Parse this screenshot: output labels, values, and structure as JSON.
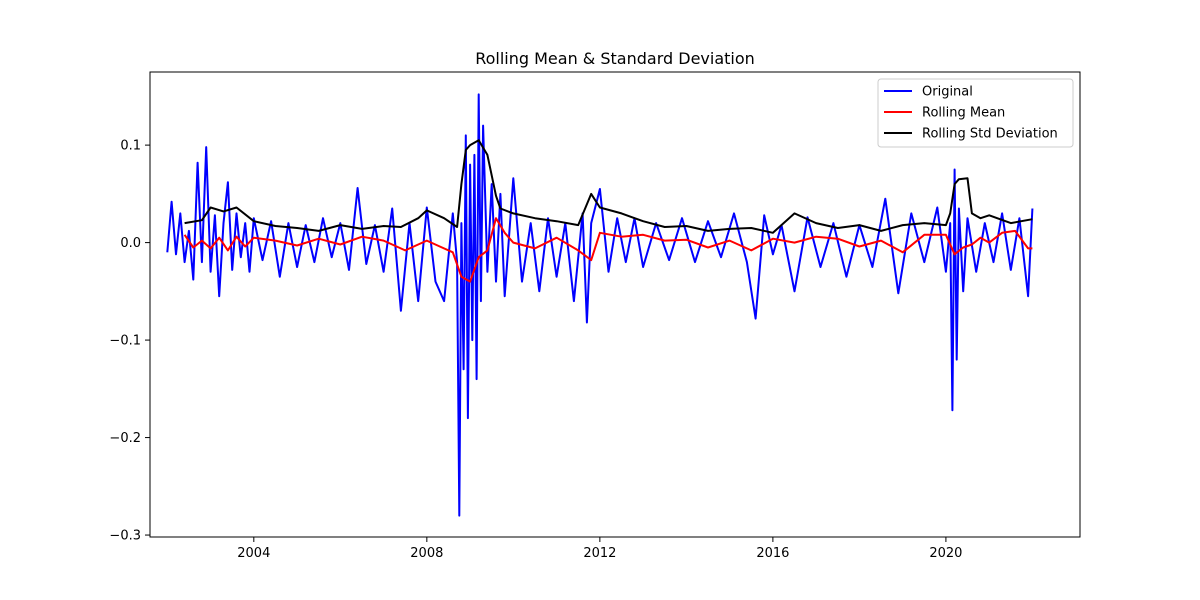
{
  "chart_data": {
    "type": "line",
    "title": "Rolling Mean & Standard Deviation",
    "xlabel": "",
    "ylabel": "",
    "x_axis": "date (year)",
    "xlim": [
      2001.6,
      2023.1
    ],
    "ylim": [
      -0.302,
      0.175
    ],
    "x_ticks": [
      2004,
      2008,
      2012,
      2016,
      2020
    ],
    "x_tick_labels": [
      "2004",
      "2008",
      "2012",
      "2016",
      "2020"
    ],
    "y_ticks": [
      -0.3,
      -0.2,
      -0.1,
      0.0,
      0.1
    ],
    "y_tick_labels": [
      "−0.3",
      "−0.2",
      "−0.1",
      "0.0",
      "0.1"
    ],
    "grid": false,
    "legend_position": "top-right",
    "series": [
      {
        "name": "Original",
        "color": "#0000ff",
        "x": [
          2002.0,
          2002.1,
          2002.2,
          2002.3,
          2002.4,
          2002.5,
          2002.6,
          2002.7,
          2002.8,
          2002.9,
          2003.0,
          2003.1,
          2003.2,
          2003.3,
          2003.4,
          2003.5,
          2003.6,
          2003.7,
          2003.8,
          2003.9,
          2004.0,
          2004.2,
          2004.4,
          2004.6,
          2004.8,
          2005.0,
          2005.2,
          2005.4,
          2005.6,
          2005.8,
          2006.0,
          2006.2,
          2006.4,
          2006.6,
          2006.8,
          2007.0,
          2007.2,
          2007.4,
          2007.6,
          2007.8,
          2008.0,
          2008.2,
          2008.4,
          2008.6,
          2008.7,
          2008.75,
          2008.8,
          2008.85,
          2008.9,
          2008.95,
          2009.0,
          2009.05,
          2009.1,
          2009.15,
          2009.2,
          2009.25,
          2009.3,
          2009.4,
          2009.5,
          2009.6,
          2009.7,
          2009.8,
          2010.0,
          2010.2,
          2010.4,
          2010.6,
          2010.8,
          2011.0,
          2011.2,
          2011.4,
          2011.6,
          2011.7,
          2011.8,
          2012.0,
          2012.2,
          2012.4,
          2012.6,
          2012.8,
          2013.0,
          2013.3,
          2013.6,
          2013.9,
          2014.2,
          2014.5,
          2014.8,
          2015.1,
          2015.4,
          2015.6,
          2015.8,
          2016.0,
          2016.2,
          2016.5,
          2016.8,
          2017.1,
          2017.4,
          2017.7,
          2018.0,
          2018.3,
          2018.6,
          2018.9,
          2019.2,
          2019.5,
          2019.8,
          2020.0,
          2020.1,
          2020.15,
          2020.2,
          2020.25,
          2020.3,
          2020.4,
          2020.5,
          2020.7,
          2020.9,
          2021.1,
          2021.3,
          2021.5,
          2021.7,
          2021.9,
          2022.0
        ],
        "values": [
          -0.01,
          0.042,
          -0.012,
          0.03,
          -0.02,
          0.012,
          -0.038,
          0.082,
          -0.02,
          0.098,
          -0.03,
          0.028,
          -0.055,
          0.02,
          0.062,
          -0.028,
          0.03,
          -0.015,
          0.02,
          -0.03,
          0.025,
          -0.018,
          0.022,
          -0.035,
          0.02,
          -0.025,
          0.018,
          -0.02,
          0.025,
          -0.015,
          0.02,
          -0.028,
          0.056,
          -0.022,
          0.018,
          -0.03,
          0.035,
          -0.07,
          0.02,
          -0.06,
          0.036,
          -0.04,
          -0.06,
          0.03,
          -0.02,
          -0.28,
          0.02,
          -0.13,
          0.11,
          -0.18,
          0.08,
          -0.1,
          0.09,
          -0.14,
          0.152,
          -0.06,
          0.12,
          -0.03,
          0.06,
          -0.04,
          0.05,
          -0.055,
          0.066,
          -0.04,
          0.02,
          -0.05,
          0.025,
          -0.035,
          0.02,
          -0.06,
          0.03,
          -0.082,
          0.02,
          0.055,
          -0.03,
          0.025,
          -0.02,
          0.025,
          -0.025,
          0.02,
          -0.018,
          0.025,
          -0.02,
          0.022,
          -0.015,
          0.03,
          -0.02,
          -0.078,
          0.028,
          -0.012,
          0.018,
          -0.05,
          0.026,
          -0.025,
          0.02,
          -0.035,
          0.018,
          -0.025,
          0.045,
          -0.052,
          0.03,
          -0.02,
          0.036,
          -0.03,
          0.02,
          -0.172,
          0.075,
          -0.12,
          0.035,
          -0.05,
          0.025,
          -0.03,
          0.02,
          -0.02,
          0.03,
          -0.028,
          0.025,
          -0.055,
          0.035
        ]
      },
      {
        "name": "Rolling Mean",
        "color": "#ff0000",
        "x": [
          2002.4,
          2002.6,
          2002.8,
          2003.0,
          2003.2,
          2003.4,
          2003.6,
          2003.8,
          2004.0,
          2004.5,
          2005.0,
          2005.5,
          2006.0,
          2006.5,
          2007.0,
          2007.5,
          2008.0,
          2008.3,
          2008.6,
          2008.8,
          2009.0,
          2009.2,
          2009.4,
          2009.6,
          2009.8,
          2010.0,
          2010.5,
          2011.0,
          2011.5,
          2011.8,
          2012.0,
          2012.5,
          2013.0,
          2013.5,
          2014.0,
          2014.5,
          2015.0,
          2015.5,
          2016.0,
          2016.5,
          2017.0,
          2017.5,
          2018.0,
          2018.5,
          2019.0,
          2019.5,
          2020.0,
          2020.2,
          2020.4,
          2020.6,
          2020.8,
          2021.0,
          2021.3,
          2021.6,
          2021.9,
          2022.0
        ],
        "values": [
          0.008,
          -0.005,
          0.002,
          -0.006,
          0.005,
          -0.008,
          0.006,
          -0.004,
          0.005,
          0.002,
          -0.003,
          0.004,
          -0.002,
          0.006,
          0.002,
          -0.008,
          0.002,
          -0.004,
          -0.01,
          -0.035,
          -0.04,
          -0.015,
          -0.008,
          0.025,
          0.01,
          0.0,
          -0.006,
          0.005,
          -0.008,
          -0.018,
          0.01,
          0.006,
          0.008,
          0.002,
          0.003,
          -0.005,
          0.002,
          -0.008,
          0.004,
          0.0,
          0.006,
          0.004,
          -0.004,
          0.002,
          -0.01,
          0.008,
          0.008,
          -0.012,
          -0.005,
          -0.002,
          0.005,
          0.0,
          0.01,
          0.012,
          -0.006,
          -0.006
        ]
      },
      {
        "name": "Rolling Std Deviation",
        "color": "#000000",
        "x": [
          2002.4,
          2002.8,
          2003.0,
          2003.3,
          2003.6,
          2004.0,
          2004.5,
          2005.0,
          2005.5,
          2006.0,
          2006.5,
          2007.0,
          2007.4,
          2007.8,
          2008.0,
          2008.4,
          2008.7,
          2008.8,
          2008.9,
          2009.0,
          2009.2,
          2009.4,
          2009.6,
          2009.7,
          2010.0,
          2010.5,
          2011.0,
          2011.5,
          2011.8,
          2012.0,
          2012.5,
          2013.0,
          2013.5,
          2014.0,
          2014.5,
          2015.0,
          2015.5,
          2016.0,
          2016.5,
          2017.0,
          2017.5,
          2018.0,
          2018.5,
          2019.0,
          2019.5,
          2020.0,
          2020.1,
          2020.2,
          2020.3,
          2020.5,
          2020.6,
          2020.8,
          2021.0,
          2021.5,
          2022.0
        ],
        "values": [
          0.02,
          0.023,
          0.036,
          0.032,
          0.036,
          0.022,
          0.017,
          0.015,
          0.012,
          0.018,
          0.014,
          0.017,
          0.016,
          0.025,
          0.033,
          0.025,
          0.016,
          0.06,
          0.095,
          0.1,
          0.105,
          0.09,
          0.048,
          0.035,
          0.03,
          0.025,
          0.022,
          0.018,
          0.05,
          0.036,
          0.03,
          0.022,
          0.016,
          0.017,
          0.012,
          0.014,
          0.015,
          0.01,
          0.03,
          0.02,
          0.015,
          0.018,
          0.012,
          0.018,
          0.02,
          0.018,
          0.03,
          0.06,
          0.065,
          0.066,
          0.03,
          0.025,
          0.028,
          0.02,
          0.024
        ]
      }
    ]
  }
}
